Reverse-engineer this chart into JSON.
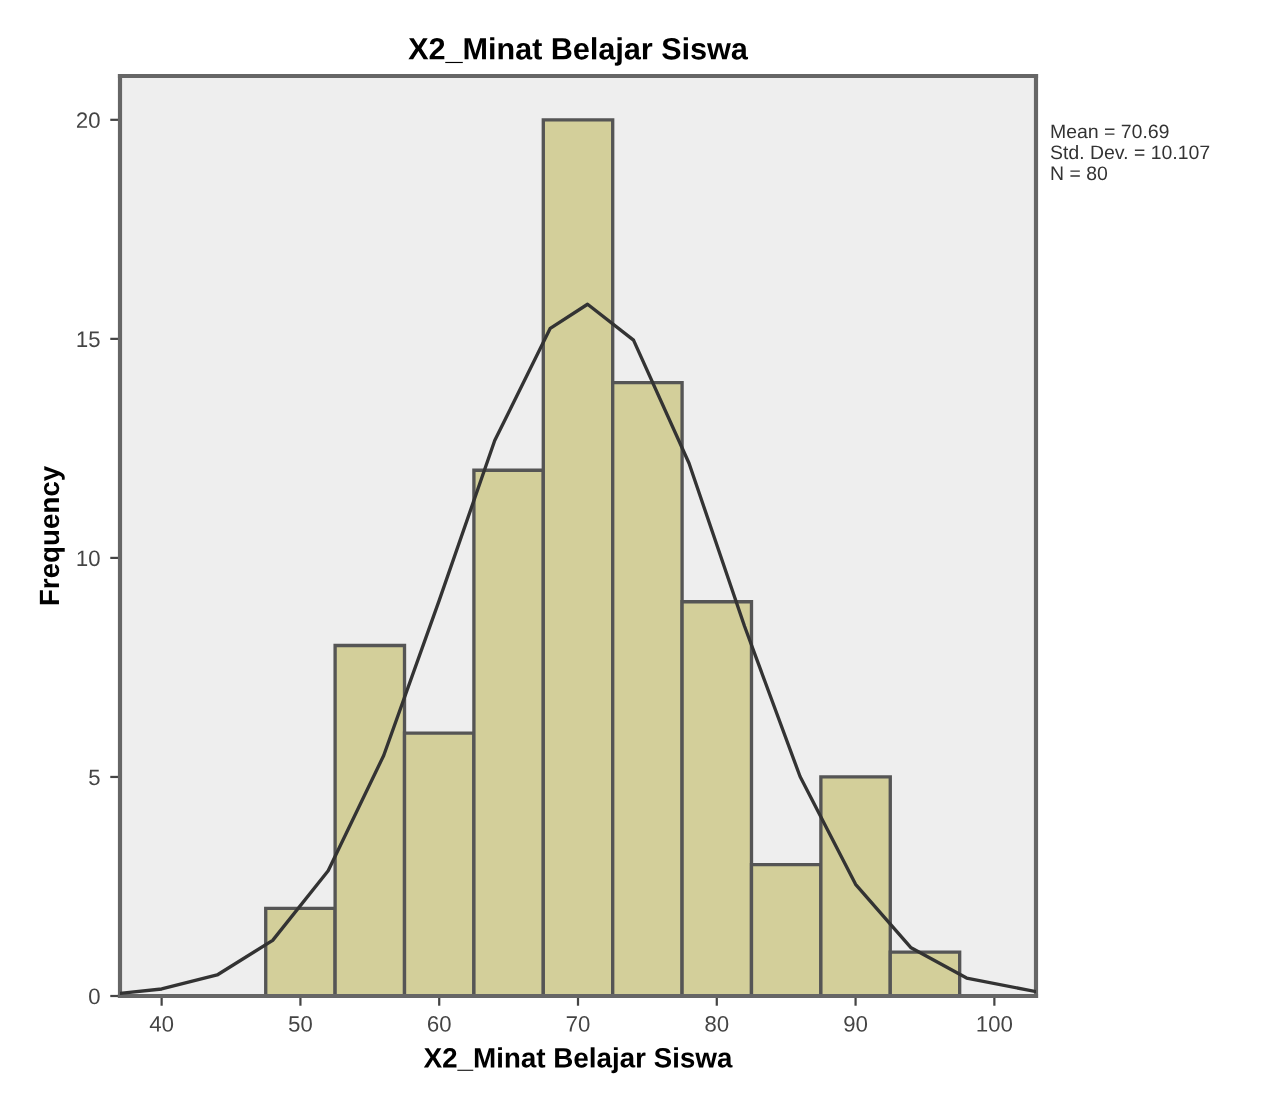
{
  "chart_data": {
    "type": "histogram",
    "title": "X2_Minat Belajar Siswa",
    "xlabel": "X2_Minat Belajar Siswa",
    "ylabel": "Frequency",
    "bins": [
      47.5,
      52.5,
      57.5,
      62.5,
      67.5,
      72.5,
      77.5,
      82.5,
      87.5,
      92.5,
      97.5
    ],
    "values": [
      2,
      8,
      6,
      12,
      20,
      14,
      9,
      3,
      5,
      1
    ],
    "color": "#d3cf9a",
    "series": [
      {
        "type": "line",
        "color": "#333333",
        "x": [
          37,
          40,
          44,
          48,
          52,
          56,
          60,
          64,
          68,
          70.69,
          74,
          78,
          82,
          86,
          90,
          94,
          98,
          103
        ],
        "values": [
          0.06,
          0.16,
          0.48,
          1.27,
          2.86,
          5.49,
          9.03,
          12.68,
          15.24,
          15.79,
          14.97,
          12.16,
          8.44,
          5.01,
          2.55,
          1.1,
          0.41,
          0.1
        ]
      }
    ],
    "xlim": [
      37,
      103
    ],
    "ylim": [
      0,
      21
    ],
    "xticks": [
      40,
      50,
      60,
      70,
      80,
      90,
      100
    ],
    "yticks": [
      0,
      5,
      10,
      15,
      20
    ],
    "grid": false,
    "legend": false,
    "marker": "none",
    "line_style": "solid",
    "annotations": [
      "Mean = 70.69\nStd. Dev. = 10.107\nN = 80"
    ]
  }
}
